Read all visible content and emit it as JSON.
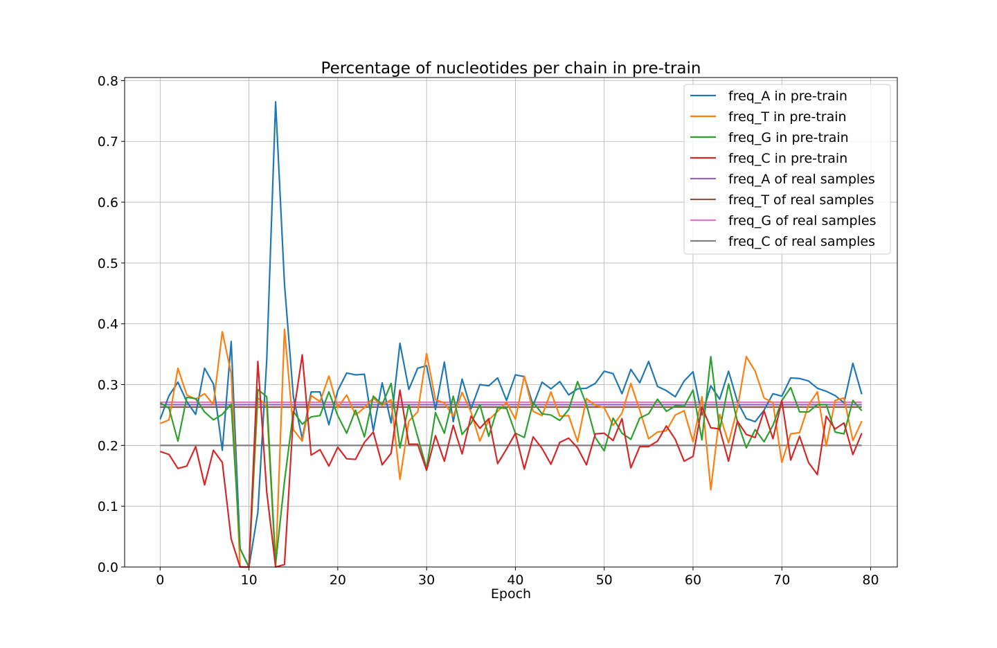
{
  "chart_data": {
    "type": "line",
    "title": "Percentage of nucleotides per chain in pre-train",
    "xlabel": "Epoch",
    "ylabel": "",
    "xlim": [
      -4,
      83
    ],
    "ylim": [
      0,
      0.805
    ],
    "xticks": [
      0,
      10,
      20,
      30,
      40,
      50,
      60,
      70,
      80
    ],
    "xtick_labels": [
      "0",
      "10",
      "20",
      "30",
      "40",
      "50",
      "60",
      "70",
      "80"
    ],
    "yticks": [
      0,
      0.1,
      0.2,
      0.3,
      0.4,
      0.5,
      0.6,
      0.7,
      0.8
    ],
    "ytick_labels": [
      "0.0",
      "0.1",
      "0.2",
      "0.3",
      "0.4",
      "0.5",
      "0.6",
      "0.7",
      "0.8"
    ],
    "grid": true,
    "legend_position": "top-right",
    "x": [
      0,
      1,
      2,
      3,
      4,
      5,
      6,
      7,
      8,
      9,
      10,
      11,
      12,
      13,
      14,
      15,
      16,
      17,
      18,
      19,
      20,
      21,
      22,
      23,
      24,
      25,
      26,
      27,
      28,
      29,
      30,
      31,
      32,
      33,
      34,
      35,
      36,
      37,
      38,
      39,
      40,
      41,
      42,
      43,
      44,
      45,
      46,
      47,
      48,
      49,
      50,
      51,
      52,
      53,
      54,
      55,
      56,
      57,
      58,
      59,
      60,
      61,
      62,
      63,
      64,
      65,
      66,
      67,
      68,
      69,
      70,
      71,
      72,
      73,
      74,
      75,
      76,
      77,
      78,
      79
    ],
    "series": [
      {
        "name": "freq_A in pre-train",
        "color": "#1f77b4",
        "values": [
          0.243,
          0.282,
          0.304,
          0.272,
          0.251,
          0.327,
          0.301,
          0.192,
          0.371,
          0.03,
          0.0,
          0.09,
          0.34,
          0.765,
          0.465,
          0.28,
          0.211,
          0.288,
          0.288,
          0.234,
          0.29,
          0.319,
          0.316,
          0.317,
          0.224,
          0.303,
          0.237,
          0.368,
          0.292,
          0.327,
          0.331,
          0.259,
          0.337,
          0.239,
          0.309,
          0.26,
          0.3,
          0.298,
          0.311,
          0.274,
          0.316,
          0.313,
          0.266,
          0.304,
          0.293,
          0.305,
          0.283,
          0.293,
          0.294,
          0.302,
          0.322,
          0.318,
          0.285,
          0.325,
          0.303,
          0.338,
          0.297,
          0.29,
          0.28,
          0.306,
          0.321,
          0.25,
          0.298,
          0.276,
          0.322,
          0.272,
          0.244,
          0.239,
          0.258,
          0.285,
          0.281,
          0.311,
          0.31,
          0.306,
          0.294,
          0.289,
          0.282,
          0.27,
          0.335,
          0.284
        ]
      },
      {
        "name": "freq_T in pre-train",
        "color": "#ff7f0e",
        "values": [
          0.236,
          0.242,
          0.327,
          0.283,
          0.276,
          0.285,
          0.267,
          0.387,
          0.318,
          0.0,
          0.0,
          0.278,
          0.265,
          0.0,
          0.391,
          0.226,
          0.207,
          0.282,
          0.272,
          0.314,
          0.262,
          0.283,
          0.25,
          0.262,
          0.278,
          0.266,
          0.275,
          0.144,
          0.24,
          0.255,
          0.351,
          0.275,
          0.27,
          0.248,
          0.287,
          0.255,
          0.207,
          0.242,
          0.256,
          0.271,
          0.243,
          0.314,
          0.256,
          0.249,
          0.288,
          0.248,
          0.249,
          0.206,
          0.277,
          0.266,
          0.262,
          0.233,
          0.253,
          0.302,
          0.258,
          0.211,
          0.222,
          0.224,
          0.25,
          0.257,
          0.206,
          0.28,
          0.127,
          0.251,
          0.204,
          0.261,
          0.346,
          0.322,
          0.278,
          0.27,
          0.172,
          0.219,
          0.221,
          0.266,
          0.288,
          0.199,
          0.274,
          0.278,
          0.208,
          0.24
        ]
      },
      {
        "name": "freq_G in pre-train",
        "color": "#2ca02c",
        "values": [
          0.27,
          0.261,
          0.207,
          0.279,
          0.277,
          0.255,
          0.242,
          0.251,
          0.268,
          0.03,
          0.0,
          0.292,
          0.28,
          0.005,
          0.141,
          0.256,
          0.235,
          0.247,
          0.249,
          0.288,
          0.249,
          0.22,
          0.258,
          0.214,
          0.281,
          0.267,
          0.302,
          0.196,
          0.267,
          0.214,
          0.162,
          0.254,
          0.22,
          0.281,
          0.218,
          0.236,
          0.267,
          0.215,
          0.262,
          0.261,
          0.22,
          0.213,
          0.271,
          0.252,
          0.25,
          0.241,
          0.259,
          0.305,
          0.267,
          0.213,
          0.191,
          0.245,
          0.22,
          0.21,
          0.245,
          0.252,
          0.276,
          0.256,
          0.265,
          0.264,
          0.291,
          0.209,
          0.346,
          0.225,
          0.301,
          0.239,
          0.196,
          0.226,
          0.206,
          0.233,
          0.274,
          0.295,
          0.255,
          0.255,
          0.267,
          0.267,
          0.222,
          0.219,
          0.274,
          0.257
        ]
      },
      {
        "name": "freq_C in pre-train",
        "color": "#d62728",
        "values": [
          0.19,
          0.185,
          0.162,
          0.166,
          0.198,
          0.135,
          0.192,
          0.172,
          0.046,
          0.0,
          0.0,
          0.338,
          0.124,
          0.0,
          0.004,
          0.25,
          0.349,
          0.184,
          0.193,
          0.166,
          0.197,
          0.178,
          0.177,
          0.205,
          0.222,
          0.168,
          0.187,
          0.291,
          0.202,
          0.202,
          0.159,
          0.216,
          0.174,
          0.233,
          0.186,
          0.248,
          0.228,
          0.244,
          0.17,
          0.194,
          0.22,
          0.161,
          0.214,
          0.195,
          0.169,
          0.205,
          0.212,
          0.196,
          0.168,
          0.219,
          0.22,
          0.208,
          0.244,
          0.163,
          0.198,
          0.198,
          0.207,
          0.232,
          0.21,
          0.174,
          0.182,
          0.263,
          0.229,
          0.227,
          0.174,
          0.24,
          0.218,
          0.213,
          0.257,
          0.211,
          0.274,
          0.176,
          0.215,
          0.172,
          0.152,
          0.248,
          0.227,
          0.237,
          0.185,
          0.22
        ]
      },
      {
        "name": "freq_A of real samples",
        "color": "#9467bd",
        "constant": 0.267
      },
      {
        "name": "freq_T of real samples",
        "color": "#8c564b",
        "constant": 0.263
      },
      {
        "name": "freq_G of real samples",
        "color": "#e377c2",
        "constant": 0.271
      },
      {
        "name": "freq_C of real samples",
        "color": "#7f7f7f",
        "constant": 0.2
      }
    ]
  }
}
